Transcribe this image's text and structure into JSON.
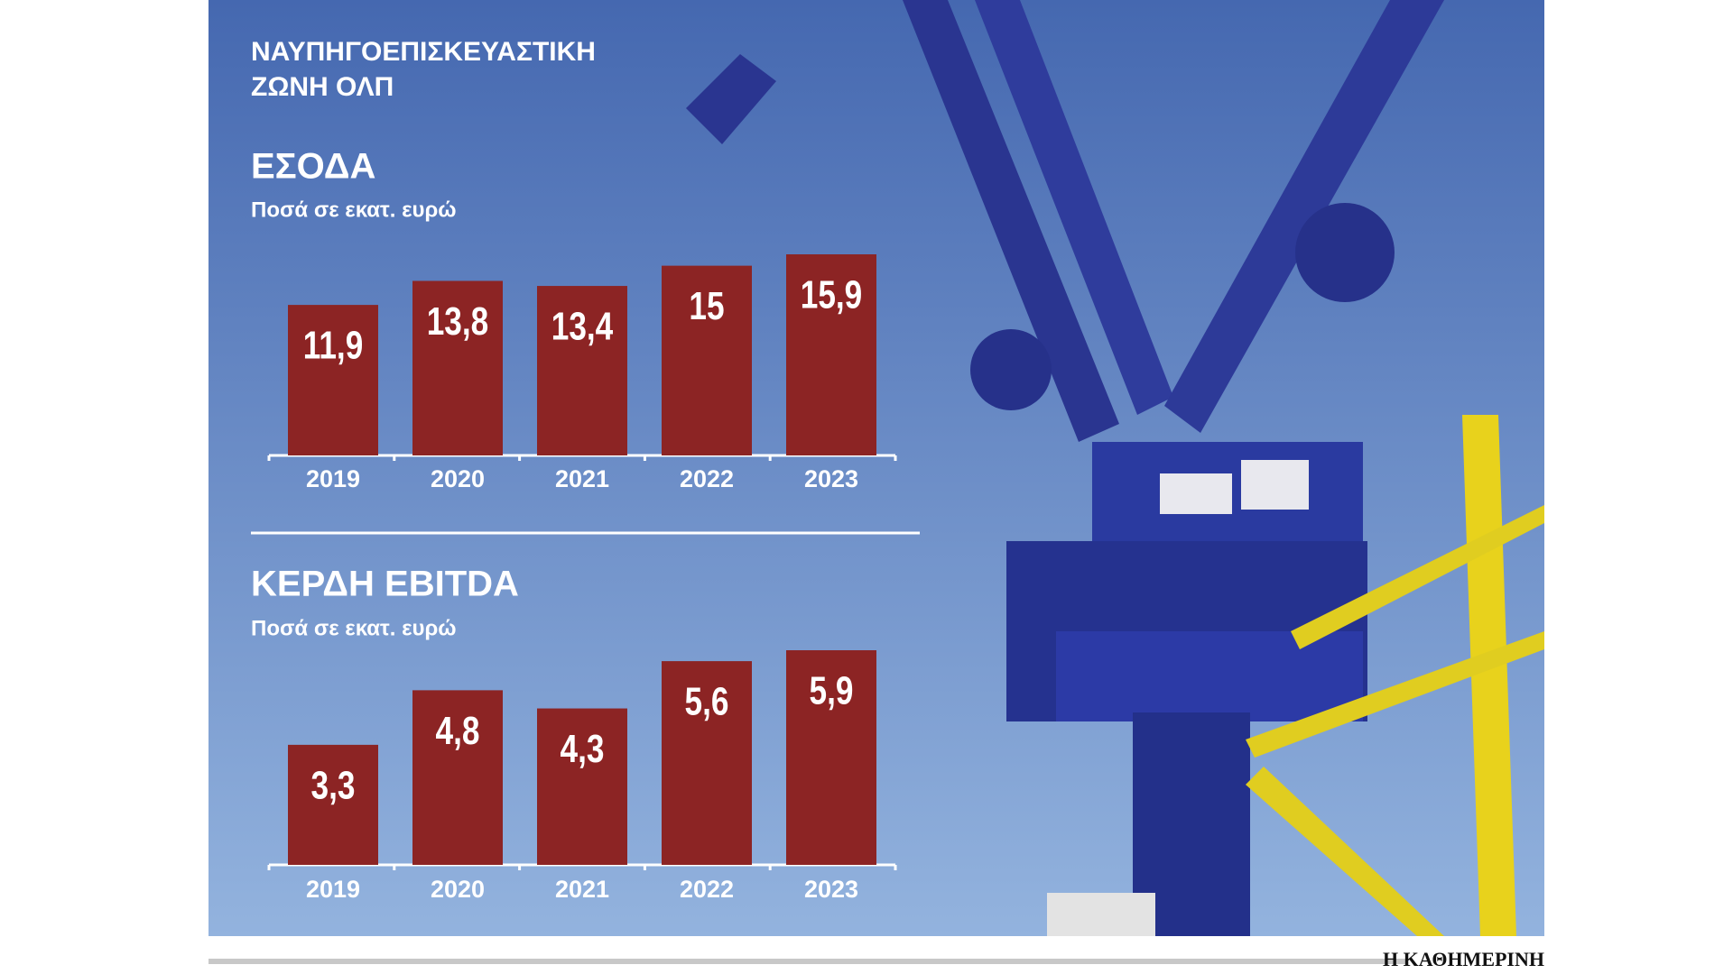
{
  "title": [
    "ΝΑΥΠΗΓΟΕΠΙΣΚΕΥΑΣΤΙΚΗ",
    "ΖΩΝΗ ΟΛΠ"
  ],
  "credit": "Η ΚΑΘΗΜΕΡΙΝΗ",
  "chart_data": [
    {
      "type": "bar",
      "title": "ΕΣΟΔΑ",
      "subtitle": "Ποσά σε εκατ. ευρώ",
      "color": "#8c2424",
      "categories": [
        "2019",
        "2020",
        "2021",
        "2022",
        "2023"
      ],
      "values": [
        11.9,
        13.8,
        13.4,
        15,
        15.9
      ],
      "value_labels": [
        "11,9",
        "13,8",
        "13,4",
        "15",
        "15,9"
      ]
    },
    {
      "type": "bar",
      "title": "ΚΕΡΔΗ EBITDA",
      "subtitle": "Ποσά σε εκατ. ευρώ",
      "color": "#8c2424",
      "categories": [
        "2019",
        "2020",
        "2021",
        "2022",
        "2023"
      ],
      "values": [
        3.3,
        4.8,
        4.3,
        5.6,
        5.9
      ],
      "value_labels": [
        "3,3",
        "4,8",
        "4,3",
        "5,6",
        "5,9"
      ]
    }
  ]
}
